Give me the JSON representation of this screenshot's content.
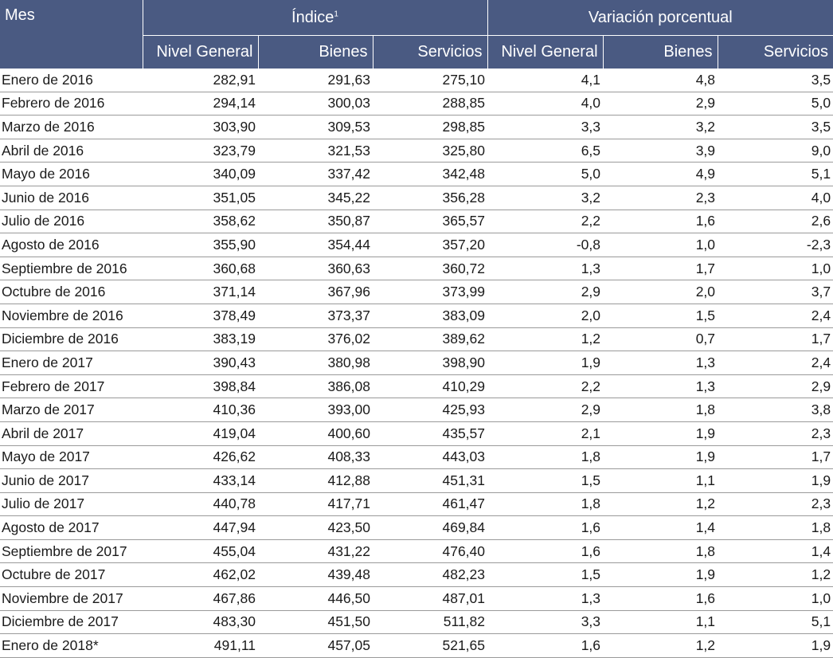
{
  "headers": {
    "mes": "Mes",
    "indice": "Índice",
    "indice_sup": "1",
    "variacion": "Variación porcentual",
    "sub": [
      "Nivel General",
      "Bienes",
      "Servicios",
      "Nivel General",
      "Bienes",
      "Servicios"
    ]
  },
  "rows": [
    [
      "Enero de 2016",
      "282,91",
      "291,63",
      "275,10",
      "4,1",
      "4,8",
      "3,5"
    ],
    [
      "Febrero de 2016",
      "294,14",
      "300,03",
      "288,85",
      "4,0",
      "2,9",
      "5,0"
    ],
    [
      "Marzo de 2016",
      "303,90",
      "309,53",
      "298,85",
      "3,3",
      "3,2",
      "3,5"
    ],
    [
      "Abril de 2016",
      "323,79",
      "321,53",
      "325,80",
      "6,5",
      "3,9",
      "9,0"
    ],
    [
      "Mayo de 2016",
      "340,09",
      "337,42",
      "342,48",
      "5,0",
      "4,9",
      "5,1"
    ],
    [
      "Junio de 2016",
      "351,05",
      "345,22",
      "356,28",
      "3,2",
      "2,3",
      "4,0"
    ],
    [
      "Julio de 2016",
      "358,62",
      "350,87",
      "365,57",
      "2,2",
      "1,6",
      "2,6"
    ],
    [
      "Agosto de 2016",
      "355,90",
      "354,44",
      "357,20",
      "-0,8",
      "1,0",
      "-2,3"
    ],
    [
      "Septiembre de 2016",
      "360,68",
      "360,63",
      "360,72",
      "1,3",
      "1,7",
      "1,0"
    ],
    [
      "Octubre de 2016",
      "371,14",
      "367,96",
      "373,99",
      "2,9",
      "2,0",
      "3,7"
    ],
    [
      "Noviembre de 2016",
      "378,49",
      "373,37",
      "383,09",
      "2,0",
      "1,5",
      "2,4"
    ],
    [
      "Diciembre de 2016",
      "383,19",
      "376,02",
      "389,62",
      "1,2",
      "0,7",
      "1,7"
    ],
    [
      "Enero de 2017",
      "390,43",
      "380,98",
      "398,90",
      "1,9",
      "1,3",
      "2,4"
    ],
    [
      "Febrero de 2017",
      "398,84",
      "386,08",
      "410,29",
      "2,2",
      "1,3",
      "2,9"
    ],
    [
      "Marzo de 2017",
      "410,36",
      "393,00",
      "425,93",
      "2,9",
      "1,8",
      "3,8"
    ],
    [
      "Abril de 2017",
      "419,04",
      "400,60",
      "435,57",
      "2,1",
      "1,9",
      "2,3"
    ],
    [
      "Mayo de 2017",
      "426,62",
      "408,33",
      "443,03",
      "1,8",
      "1,9",
      "1,7"
    ],
    [
      "Junio de 2017",
      "433,14",
      "412,88",
      "451,31",
      "1,5",
      "1,1",
      "1,9"
    ],
    [
      "Julio de 2017",
      "440,78",
      "417,71",
      "461,47",
      "1,8",
      "1,2",
      "2,3"
    ],
    [
      "Agosto de 2017",
      "447,94",
      "423,50",
      "469,84",
      "1,6",
      "1,4",
      "1,8"
    ],
    [
      "Septiembre de 2017",
      "455,04",
      "431,22",
      "476,40",
      "1,6",
      "1,8",
      "1,4"
    ],
    [
      "Octubre de 2017",
      "462,02",
      "439,48",
      "482,23",
      "1,5",
      "1,9",
      "1,2"
    ],
    [
      "Noviembre de 2017",
      "467,86",
      "446,50",
      "487,01",
      "1,3",
      "1,6",
      "1,0"
    ],
    [
      "Diciembre de 2017",
      "483,30",
      "451,50",
      "511,82",
      "3,3",
      "1,1",
      "5,1"
    ],
    [
      "Enero de 2018*",
      "491,11",
      "457,05",
      "521,65",
      "1,6",
      "1,2",
      "1,9"
    ]
  ]
}
